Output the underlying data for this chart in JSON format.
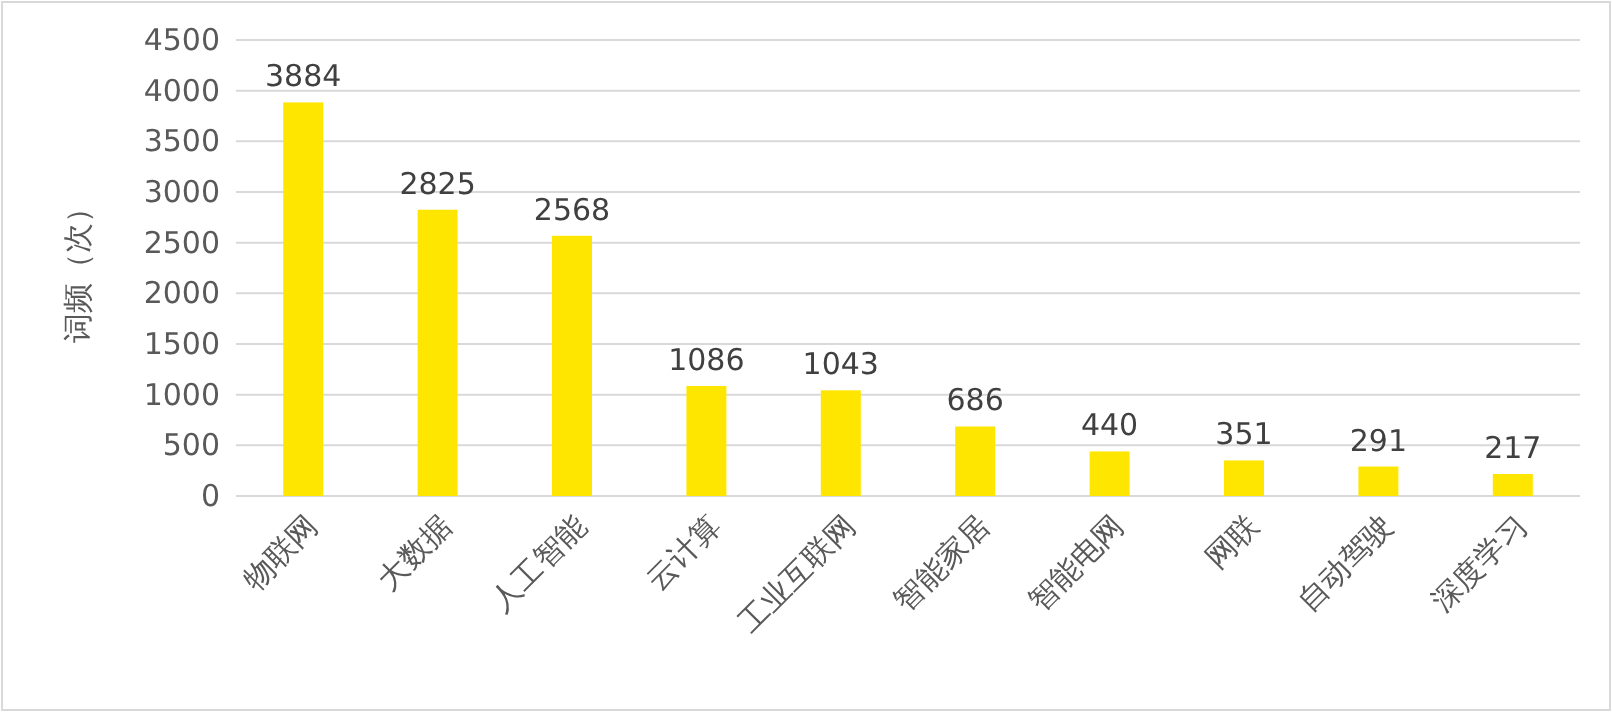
{
  "chart_data": {
    "type": "bar",
    "ylabel": "词频（次）",
    "categories": [
      "物联网",
      "大数据",
      "人工智能",
      "云计算",
      "工业互联网",
      "智能家居",
      "智能电网",
      "网联",
      "自动驾驶",
      "深度学习"
    ],
    "values": [
      3884,
      2825,
      2568,
      1086,
      1043,
      686,
      440,
      351,
      291,
      217
    ],
    "color": "#ffe600",
    "ylim": [
      0,
      4500
    ],
    "yticks": [
      0,
      500,
      1000,
      1500,
      2000,
      2500,
      3000,
      3500,
      4000,
      4500
    ],
    "grid": "y",
    "data_labels": true
  }
}
